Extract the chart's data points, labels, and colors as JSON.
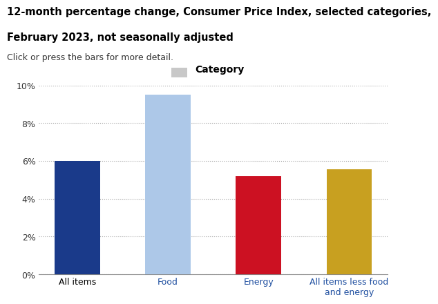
{
  "title_line1": "12-month percentage change, Consumer Price Index, selected categories,",
  "title_line2": "February 2023, not seasonally adjusted",
  "subtitle": "Click or press the bars for more detail.",
  "legend_label": "Category",
  "categories": [
    "All items",
    "Food",
    "Energy",
    "All items less food\nand energy"
  ],
  "values": [
    6.0,
    9.5,
    5.2,
    5.55
  ],
  "bar_colors": [
    "#1a3a8a",
    "#adc8e8",
    "#cc1122",
    "#c8a020"
  ],
  "xlabel_colors": [
    "#000000",
    "#1f4fa0",
    "#1f4fa0",
    "#1f4fa0"
  ],
  "ylim": [
    0,
    10
  ],
  "yticks": [
    0,
    2,
    4,
    6,
    8,
    10
  ],
  "ytick_labels": [
    "0%",
    "2%",
    "4%",
    "6%",
    "8%",
    "10%"
  ],
  "legend_color": "#c8c8c8",
  "title_fontsize": 10.5,
  "subtitle_fontsize": 9,
  "tick_label_fontsize": 9,
  "background_color": "#ffffff"
}
